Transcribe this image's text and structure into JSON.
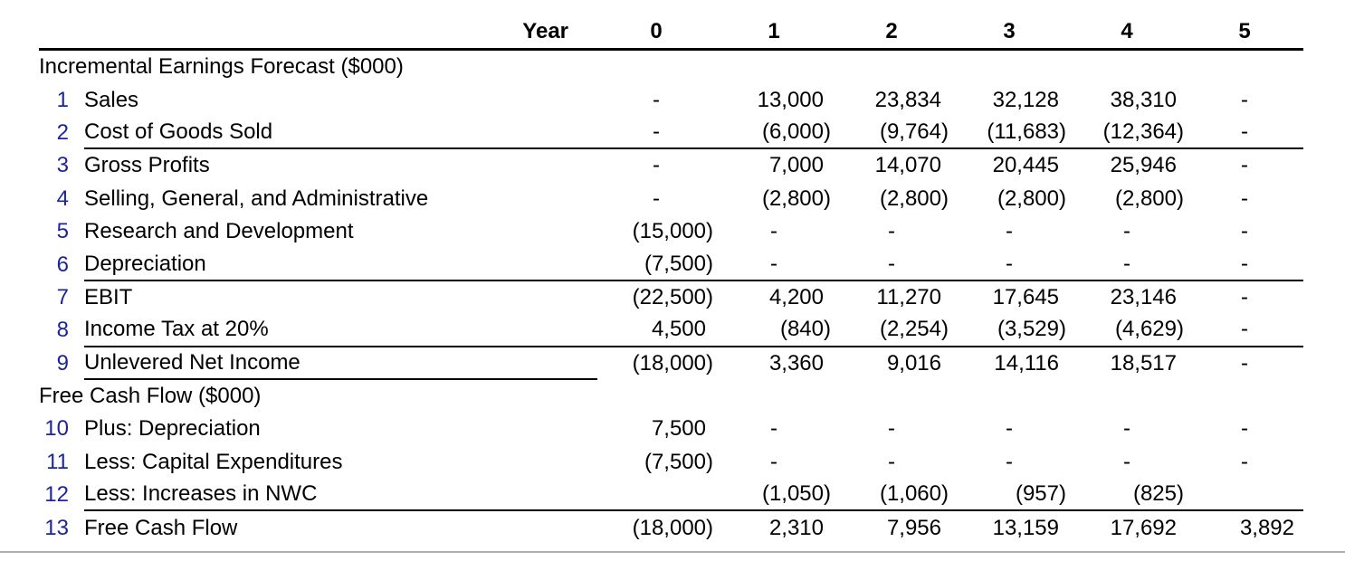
{
  "colors": {
    "background": "#ffffff",
    "row_number_blue": "#1e2499",
    "rule_black": "#000000",
    "bottom_separator_gray": "#b0b0b0"
  },
  "chart_data": {
    "type": "table",
    "header": {
      "year_label": "Year",
      "columns": [
        "0",
        "1",
        "2",
        "3",
        "4",
        "5"
      ]
    },
    "sections": [
      {
        "title": "Incremental Earnings Forecast ($000)",
        "rows": [
          {
            "num": "1",
            "label": "Sales",
            "values": [
              "-",
              "13,000",
              "23,834",
              "32,128",
              "38,310",
              "-"
            ],
            "rule_below": "none"
          },
          {
            "num": "2",
            "label": "Cost of Goods Sold",
            "values": [
              "-",
              "(6,000)",
              "(9,764)",
              "(11,683)",
              "(12,364)",
              "-"
            ],
            "rule_below": "full"
          },
          {
            "num": "3",
            "label": "Gross Profits",
            "values": [
              "-",
              "7,000",
              "14,070",
              "20,445",
              "25,946",
              "-"
            ],
            "rule_below": "none"
          },
          {
            "num": "4",
            "label": "Selling, General, and Administrative",
            "values": [
              "-",
              "(2,800)",
              "(2,800)",
              "(2,800)",
              "(2,800)",
              "-"
            ],
            "rule_below": "none"
          },
          {
            "num": "5",
            "label": "Research and Development",
            "values": [
              "(15,000)",
              "-",
              "-",
              "-",
              "-",
              "-"
            ],
            "rule_below": "none"
          },
          {
            "num": "6",
            "label": "Depreciation",
            "values": [
              "(7,500)",
              "-",
              "-",
              "-",
              "-",
              "-"
            ],
            "rule_below": "full"
          },
          {
            "num": "7",
            "label": "EBIT",
            "values": [
              "(22,500)",
              "4,200",
              "11,270",
              "17,645",
              "23,146",
              "-"
            ],
            "rule_below": "none"
          },
          {
            "num": "8",
            "label": "Income Tax at 20%",
            "values": [
              "4,500",
              "(840)",
              "(2,254)",
              "(3,529)",
              "(4,629)",
              "-"
            ],
            "rule_below": "full"
          },
          {
            "num": "9",
            "label": "Unlevered Net Income",
            "values": [
              "(18,000)",
              "3,360",
              "9,016",
              "14,116",
              "18,517",
              "-"
            ],
            "rule_below": "label"
          }
        ]
      },
      {
        "title": "Free Cash Flow ($000)",
        "rows": [
          {
            "num": "10",
            "label": "Plus: Depreciation",
            "values": [
              "7,500",
              "-",
              "-",
              "-",
              "-",
              "-"
            ],
            "rule_below": "none"
          },
          {
            "num": "11",
            "label": "Less: Capital Expenditures",
            "values": [
              "(7,500)",
              "-",
              "-",
              "-",
              "-",
              "-"
            ],
            "rule_below": "none"
          },
          {
            "num": "12",
            "label": "Less: Increases in NWC",
            "values": [
              "",
              "(1,050)",
              "(1,060)",
              "(957)",
              "(825)",
              ""
            ],
            "rule_below": "full"
          },
          {
            "num": "13",
            "label": "Free Cash Flow",
            "values": [
              "(18,000)",
              "2,310",
              "7,956",
              "13,159",
              "17,692",
              "3,892"
            ],
            "rule_below": "none"
          }
        ]
      }
    ]
  }
}
